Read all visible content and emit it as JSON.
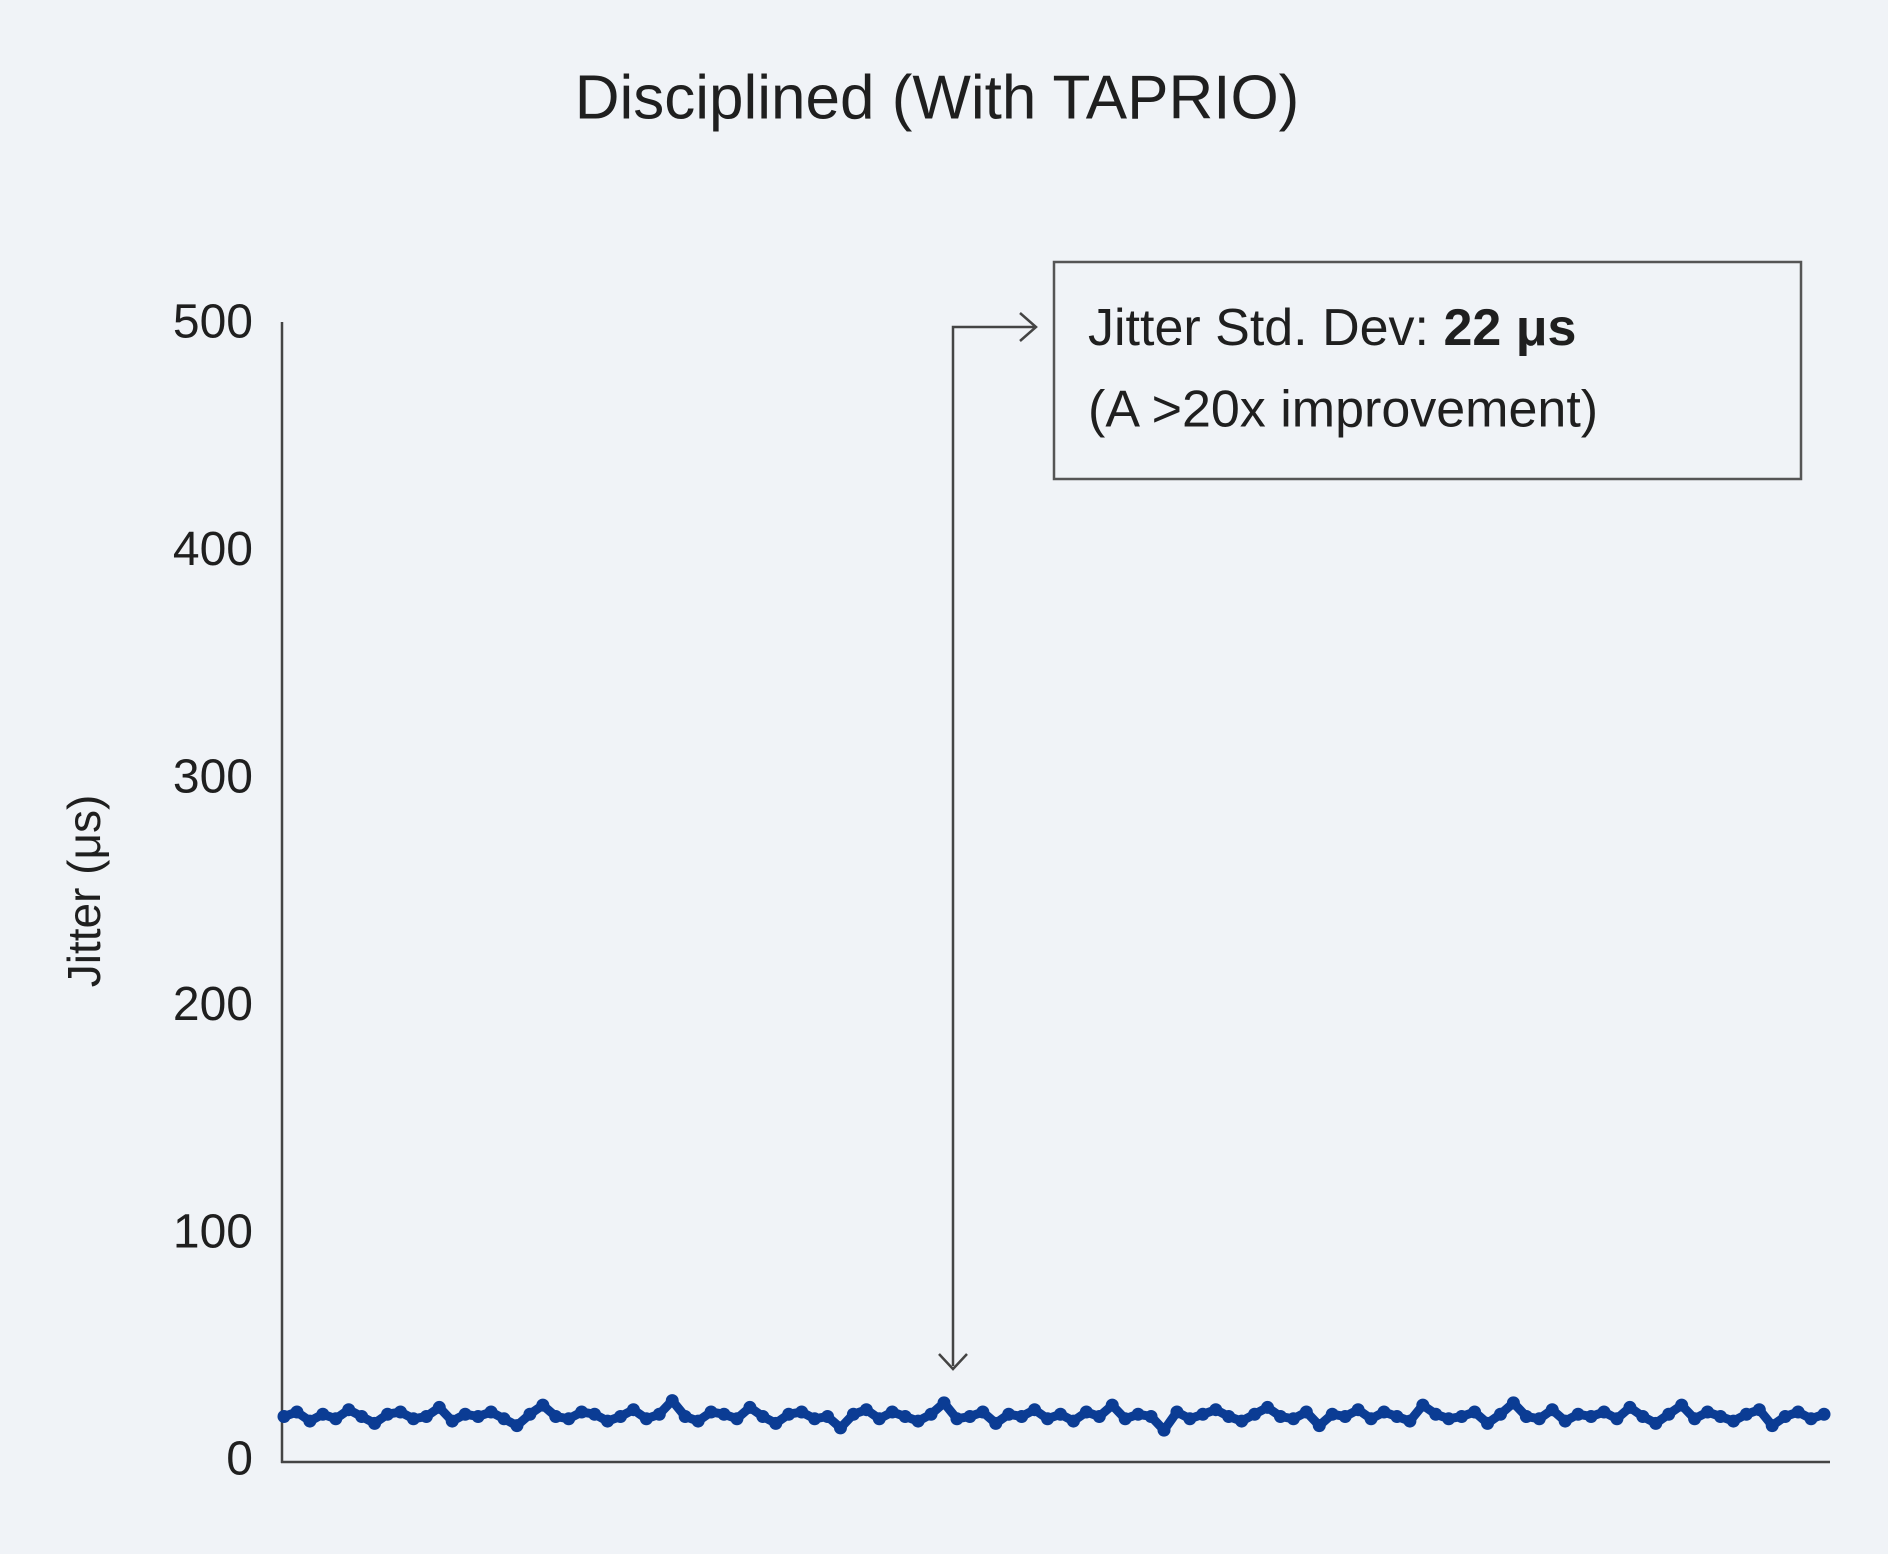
{
  "chart_data": {
    "type": "line",
    "title": "Disciplined (With TAPRIO)",
    "y_label": "Jitter (μs)",
    "annotation": {
      "label": "Jitter Std. Dev:",
      "value_text": "22 μs",
      "note": "(A >20x improvement)"
    },
    "color": "#0b3c94",
    "grid": false,
    "ylim": [
      0,
      500
    ],
    "yticks": [
      0,
      100,
      200,
      300,
      400,
      500
    ],
    "values": [
      20,
      22,
      18,
      21,
      19,
      23,
      20,
      17,
      21,
      22,
      19,
      20,
      24,
      18,
      21,
      20,
      22,
      19,
      16,
      21,
      25,
      20,
      19,
      22,
      21,
      18,
      20,
      23,
      19,
      21,
      27,
      20,
      18,
      22,
      21,
      19,
      24,
      20,
      17,
      21,
      22,
      19,
      20,
      15,
      21,
      23,
      19,
      22,
      20,
      18,
      21,
      26,
      19,
      20,
      22,
      17,
      21,
      20,
      23,
      19,
      21,
      18,
      22,
      20,
      25,
      19,
      21,
      20,
      14,
      22,
      19,
      21,
      23,
      20,
      18,
      21,
      24,
      20,
      19,
      22,
      16,
      21,
      20,
      23,
      19,
      22,
      20,
      18,
      25,
      21,
      19,
      20,
      22,
      17,
      21,
      26,
      20,
      19,
      23,
      18,
      21,
      20,
      22,
      19,
      24,
      20,
      17,
      21,
      25,
      19,
      22,
      20,
      18,
      21,
      23,
      16,
      20,
      22,
      19,
      21
    ]
  }
}
